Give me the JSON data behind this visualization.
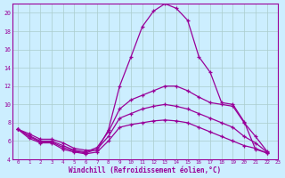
{
  "bg_color": "#cceeff",
  "line_color": "#990099",
  "grid_color": "#aacccc",
  "xlabel": "Windchill (Refroidissement éolien,°C)",
  "xlabel_color": "#990099",
  "tick_color": "#990099",
  "xlim": [
    -0.5,
    23
  ],
  "ylim": [
    4,
    21
  ],
  "yticks": [
    4,
    6,
    8,
    10,
    12,
    14,
    16,
    18,
    20
  ],
  "xticks": [
    0,
    1,
    2,
    3,
    4,
    5,
    6,
    7,
    8,
    9,
    10,
    11,
    12,
    13,
    14,
    15,
    16,
    17,
    18,
    19,
    20,
    21,
    22,
    23
  ],
  "curves": [
    [
      7.3,
      6.8,
      6.2,
      6.2,
      5.8,
      5.2,
      5.0,
      5.0,
      7.2,
      12.0,
      15.2,
      18.5,
      20.2,
      21.0,
      20.5,
      19.2,
      15.2,
      13.5,
      10.2,
      10.0,
      8.1,
      5.1,
      4.7
    ],
    [
      7.3,
      6.6,
      6.0,
      6.0,
      5.5,
      5.0,
      4.8,
      5.3,
      7.0,
      9.5,
      10.5,
      11.0,
      11.5,
      12.0,
      12.0,
      11.5,
      10.8,
      10.2,
      10.0,
      9.8,
      8.0,
      6.5,
      4.9
    ],
    [
      7.3,
      6.5,
      5.9,
      5.9,
      5.3,
      4.9,
      4.7,
      5.1,
      6.5,
      8.5,
      9.0,
      9.5,
      9.8,
      10.0,
      9.8,
      9.5,
      9.0,
      8.5,
      8.0,
      7.5,
      6.5,
      5.8,
      4.8
    ],
    [
      7.3,
      6.3,
      5.8,
      5.8,
      5.1,
      4.8,
      4.6,
      4.8,
      6.0,
      7.5,
      7.8,
      8.0,
      8.2,
      8.3,
      8.2,
      8.0,
      7.5,
      7.0,
      6.5,
      6.0,
      5.5,
      5.2,
      4.7
    ]
  ]
}
